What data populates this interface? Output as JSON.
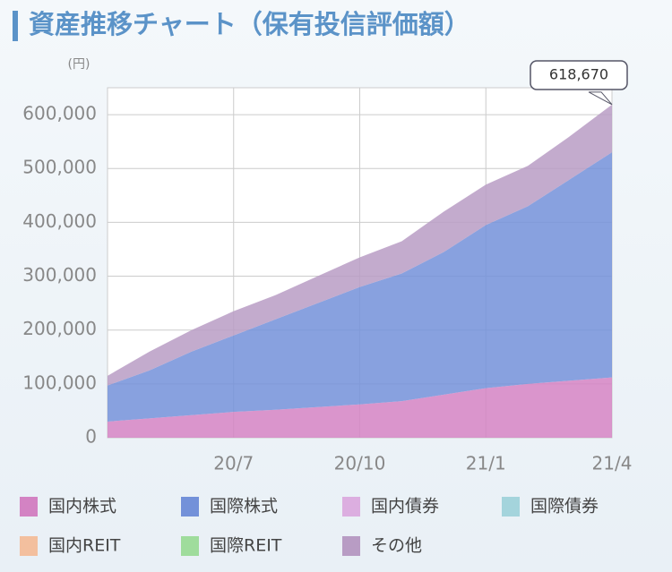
{
  "chart_data": {
    "type": "stacked_area",
    "title": "資産推移チャート（保有投信評価額）",
    "y_unit": "(円)",
    "annotation": "618,670",
    "categories": [
      null,
      null,
      null,
      "20/7",
      null,
      null,
      "20/10",
      null,
      null,
      "21/1",
      null,
      null,
      "21/4"
    ],
    "series": [
      {
        "name": "国内株式",
        "color": "#d383c3",
        "values": [
          30000,
          36000,
          42000,
          48000,
          52000,
          57000,
          62000,
          68000,
          80000,
          92000,
          100000,
          106000,
          112000
        ]
      },
      {
        "name": "国際株式",
        "color": "#7391d9",
        "values": [
          67000,
          89000,
          118000,
          142000,
          168000,
          193000,
          218000,
          237000,
          265000,
          303000,
          330000,
          374000,
          418000
        ]
      },
      {
        "name": "国内債券",
        "color": "#dcaee0",
        "values": [
          0,
          0,
          0,
          0,
          0,
          0,
          0,
          0,
          0,
          0,
          0,
          0,
          0
        ]
      },
      {
        "name": "国際債券",
        "color": "#a4d4dc",
        "values": [
          0,
          0,
          0,
          0,
          0,
          0,
          0,
          0,
          0,
          0,
          0,
          0,
          0
        ]
      },
      {
        "name": "国内REIT",
        "color": "#f3bf9e",
        "values": [
          0,
          0,
          0,
          0,
          0,
          0,
          0,
          0,
          0,
          0,
          0,
          0,
          0
        ]
      },
      {
        "name": "国際REIT",
        "color": "#9fdc9c",
        "values": [
          0,
          0,
          0,
          0,
          0,
          0,
          0,
          0,
          0,
          0,
          0,
          0,
          0
        ]
      },
      {
        "name": "その他",
        "color": "#b89cc4",
        "values": [
          18000,
          35000,
          40000,
          45000,
          45000,
          50000,
          55000,
          60000,
          75000,
          75000,
          75000,
          80000,
          88670
        ]
      }
    ],
    "ylim": [
      0,
      650000
    ],
    "yticks": [
      0,
      {
        "value": 100000,
        "label": "100,000"
      },
      {
        "value": 200000,
        "label": "200,000"
      },
      {
        "value": 300000,
        "label": "300,000"
      },
      {
        "value": 400000,
        "label": "400,000"
      },
      {
        "value": 500000,
        "label": "500,000"
      },
      {
        "value": 600000,
        "label": "600,000"
      }
    ],
    "grid": true
  }
}
